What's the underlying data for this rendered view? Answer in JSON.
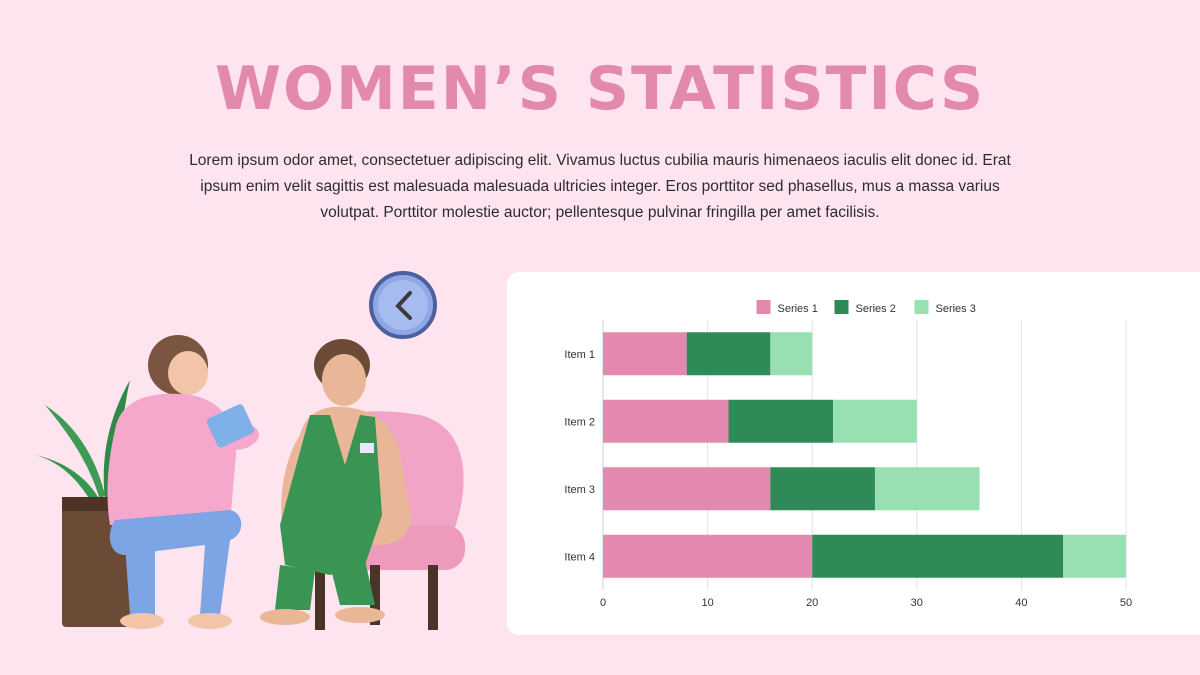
{
  "header": {
    "title": "WOMEN’S STATISTICS",
    "description": "Lorem ipsum odor amet, consectetuer adipiscing elit. Vivamus luctus cubilia mauris himenaeos iaculis elit donec id. Erat ipsum enim velit sagittis est malesuada malesuada ultricies integer. Eros porttitor sed phasellus, mus a massa varius volutpat. Porttitor molestie auctor; pellentesque pulvinar fringilla per amet facilisis."
  },
  "colors": {
    "background": "#fde4ef",
    "title": "#e389ae",
    "series1": "#e389b0",
    "series2": "#2e8b57",
    "series3": "#98e0b1"
  },
  "chart_data": {
    "type": "bar",
    "orientation": "horizontal",
    "stacked": true,
    "categories": [
      "Item 1",
      "Item 2",
      "Item 3",
      "Item 4"
    ],
    "series": [
      {
        "name": "Series 1",
        "values": [
          8,
          12,
          16,
          20
        ],
        "color": "#e389b0"
      },
      {
        "name": "Series 2",
        "values": [
          8,
          10,
          10,
          24
        ],
        "color": "#2e8b57"
      },
      {
        "name": "Series 3",
        "values": [
          4,
          8,
          10,
          6
        ],
        "color": "#98e0b1"
      }
    ],
    "xlim": [
      0,
      50
    ],
    "xticks": [
      0,
      10,
      20,
      30,
      40,
      50
    ],
    "grid": true,
    "legend": "top-center"
  }
}
